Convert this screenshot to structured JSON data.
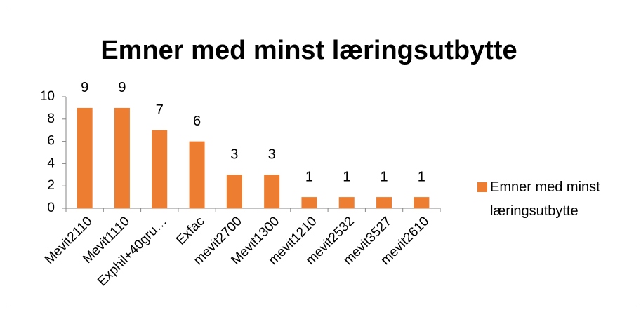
{
  "chart_data": {
    "type": "bar",
    "title": "Emner med minst læringsutbytte",
    "categories": [
      "Mevit2110",
      "Mevit1110",
      "Exphil+40gru…",
      "Exfac",
      "mevit2700",
      "Mevit1300",
      "mevit1210",
      "mevit2532",
      "mevit3527",
      "mevit2610"
    ],
    "series": [
      {
        "name": "Emner med minst læringsutbytte",
        "color": "#ed7d31",
        "values": [
          9,
          9,
          7,
          6,
          3,
          3,
          1,
          1,
          1,
          1
        ]
      }
    ],
    "ylim": [
      0,
      10
    ],
    "yticks": [
      0,
      2,
      4,
      6,
      8,
      10
    ],
    "grid": false,
    "legend": "right",
    "data_labels": true
  }
}
